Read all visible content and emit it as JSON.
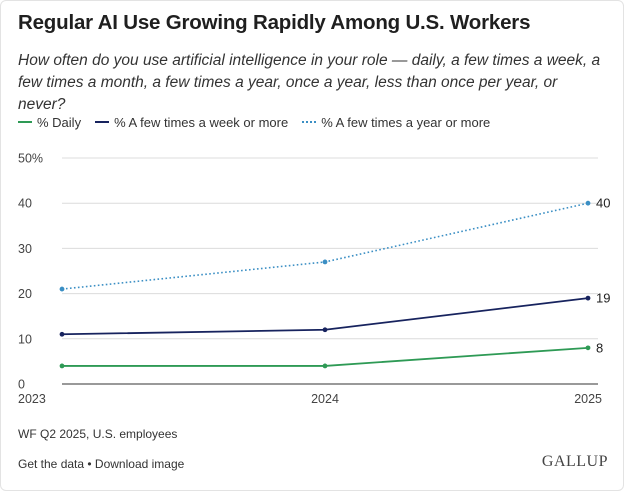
{
  "title": "Regular AI Use Growing Rapidly Among U.S. Workers",
  "subtitle": "How often do you use artificial intelligence in your role — daily, a few times a week, a few times a month, a few times a year, once a year, less than once per year, or never?",
  "legend": [
    {
      "label": "% Daily",
      "color": "#2e9a55",
      "style": "solid"
    },
    {
      "label": "% A few times a week or more",
      "color": "#17235e",
      "style": "solid"
    },
    {
      "label": "% A few times a year or more",
      "color": "#3b8fc4",
      "style": "dotted"
    }
  ],
  "chart_data": {
    "type": "line",
    "x": [
      "2023",
      "2024",
      "2025"
    ],
    "ylim": [
      0,
      50
    ],
    "yticks": [
      "0",
      "10",
      "20",
      "30",
      "40",
      "50%"
    ],
    "grid": true,
    "legend_position": "top-left",
    "series": [
      {
        "name": "% Daily",
        "values": [
          4,
          4,
          8
        ],
        "end_label": "8",
        "color": "#2e9a55",
        "style": "solid"
      },
      {
        "name": "% A few times a week or more",
        "values": [
          11,
          12,
          19
        ],
        "end_label": "19",
        "color": "#17235e",
        "style": "solid"
      },
      {
        "name": "% A few times a year or more",
        "values": [
          21,
          27,
          40
        ],
        "end_label": "40",
        "color": "#3b8fc4",
        "style": "dotted"
      }
    ]
  },
  "note": "WF Q2 2025, U.S. employees",
  "footer": {
    "get_data": "Get the data",
    "separator": " • ",
    "download": "Download image"
  },
  "logo": "GALLUP"
}
